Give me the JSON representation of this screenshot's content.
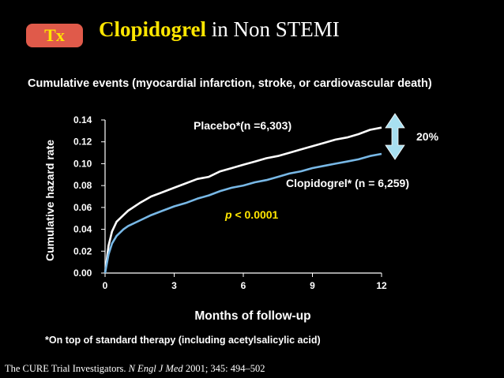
{
  "badge": "Tx",
  "title": {
    "main": "Clopidogrel",
    "rest": " in Non STEMI"
  },
  "subtitle": "Cumulative events (myocardial infarction, stroke, or cardiovascular death)",
  "footnote": "*On top of standard therapy (including acetylsalicylic acid)",
  "citation": {
    "authors": "The CURE Trial Investigators. ",
    "journal": "N Engl J Med",
    "details": " 2001; 345: 494–502"
  },
  "colors": {
    "background": "#000000",
    "title": "#ffe600",
    "badge_bg": "#e05a4a",
    "placebo": "#ffffff",
    "clopidogrel": "#78b8e6",
    "pvalue": "#ffe600",
    "arrow": "#a8dff0"
  },
  "chart_data": {
    "type": "line",
    "xlabel": "Months of follow-up",
    "ylabel": "Cumulative hazard rate",
    "xlim": [
      0,
      12
    ],
    "ylim": [
      0,
      0.14
    ],
    "xticks": [
      "0",
      "3",
      "6",
      "9",
      "12"
    ],
    "yticks": [
      "0.00",
      "0.02",
      "0.04",
      "0.06",
      "0.08",
      "0.10",
      "0.12",
      "0.14"
    ],
    "series": [
      {
        "name": "Placebo*(n =6,303)",
        "x": [
          0,
          0.15,
          0.3,
          0.5,
          0.8,
          1,
          1.5,
          2,
          2.5,
          3,
          3.5,
          4,
          4.5,
          5,
          5.5,
          6,
          6.5,
          7,
          7.5,
          8,
          8.5,
          9,
          9.5,
          10,
          10.5,
          11,
          11.5,
          12
        ],
        "values": [
          0,
          0.025,
          0.038,
          0.047,
          0.053,
          0.057,
          0.064,
          0.07,
          0.074,
          0.078,
          0.082,
          0.086,
          0.088,
          0.093,
          0.096,
          0.099,
          0.102,
          0.105,
          0.107,
          0.11,
          0.113,
          0.116,
          0.119,
          0.122,
          0.124,
          0.127,
          0.131,
          0.133
        ]
      },
      {
        "name": "Clopidogrel* (n = 6,259)",
        "x": [
          0,
          0.15,
          0.3,
          0.5,
          0.8,
          1,
          1.5,
          2,
          2.5,
          3,
          3.5,
          4,
          4.5,
          5,
          5.5,
          6,
          6.5,
          7,
          7.5,
          8,
          8.5,
          9,
          9.5,
          10,
          10.5,
          11,
          11.5,
          12
        ],
        "values": [
          0,
          0.017,
          0.027,
          0.034,
          0.04,
          0.043,
          0.048,
          0.053,
          0.057,
          0.061,
          0.064,
          0.068,
          0.071,
          0.075,
          0.078,
          0.08,
          0.083,
          0.085,
          0.088,
          0.091,
          0.093,
          0.096,
          0.098,
          0.1,
          0.102,
          0.104,
          0.107,
          0.109
        ]
      }
    ],
    "annotations": {
      "p_label": "p",
      "p_value": " < 0.0001",
      "reduction": "20%"
    },
    "grid": false,
    "legend": "inline labels"
  }
}
